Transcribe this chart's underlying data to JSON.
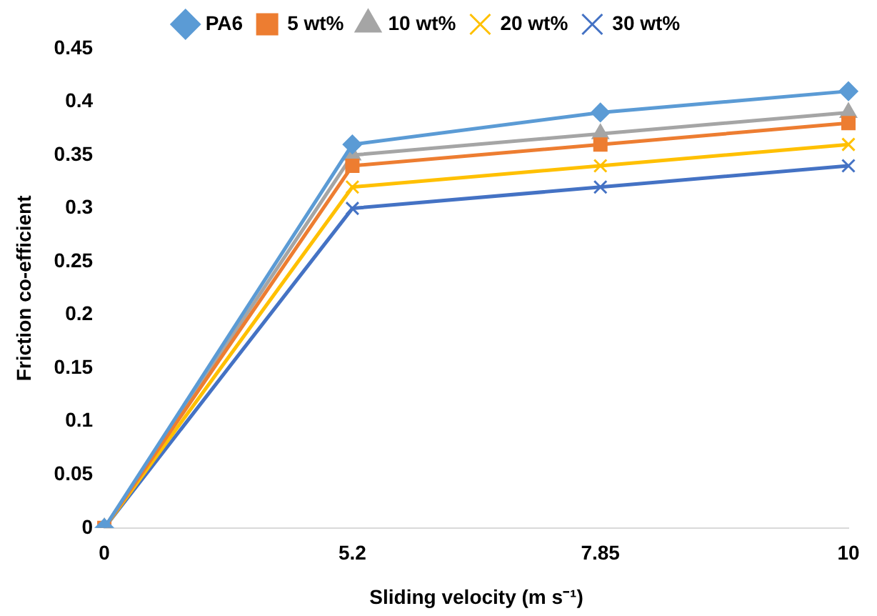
{
  "chart_data": {
    "type": "line",
    "xlabel": "Sliding velocity (m s⁻¹)",
    "ylabel": "Friction co-efficient",
    "categories": [
      "0",
      "5.2",
      "7.85",
      "10"
    ],
    "ylim": [
      0,
      0.45
    ],
    "yticks": [
      0,
      0.05,
      0.1,
      0.15,
      0.2,
      0.25,
      0.3,
      0.35,
      0.4,
      0.45
    ],
    "grid": false,
    "legend": "top",
    "series": [
      {
        "name": "PA6",
        "color": "#5b9bd5",
        "marker": "diamond",
        "values": [
          0,
          0.36,
          0.39,
          0.41
        ]
      },
      {
        "name": "5 wt%",
        "color": "#ed7d31",
        "marker": "square",
        "values": [
          0,
          0.34,
          0.36,
          0.38
        ]
      },
      {
        "name": "10 wt%",
        "color": "#a5a5a5",
        "marker": "triangle",
        "values": [
          0,
          0.35,
          0.37,
          0.39
        ]
      },
      {
        "name": "20 wt%",
        "color": "#ffc000",
        "marker": "cross",
        "values": [
          0,
          0.32,
          0.34,
          0.36
        ]
      },
      {
        "name": "30 wt%",
        "color": "#4472c4",
        "marker": "cross",
        "values": [
          0,
          0.3,
          0.32,
          0.34
        ]
      }
    ]
  }
}
